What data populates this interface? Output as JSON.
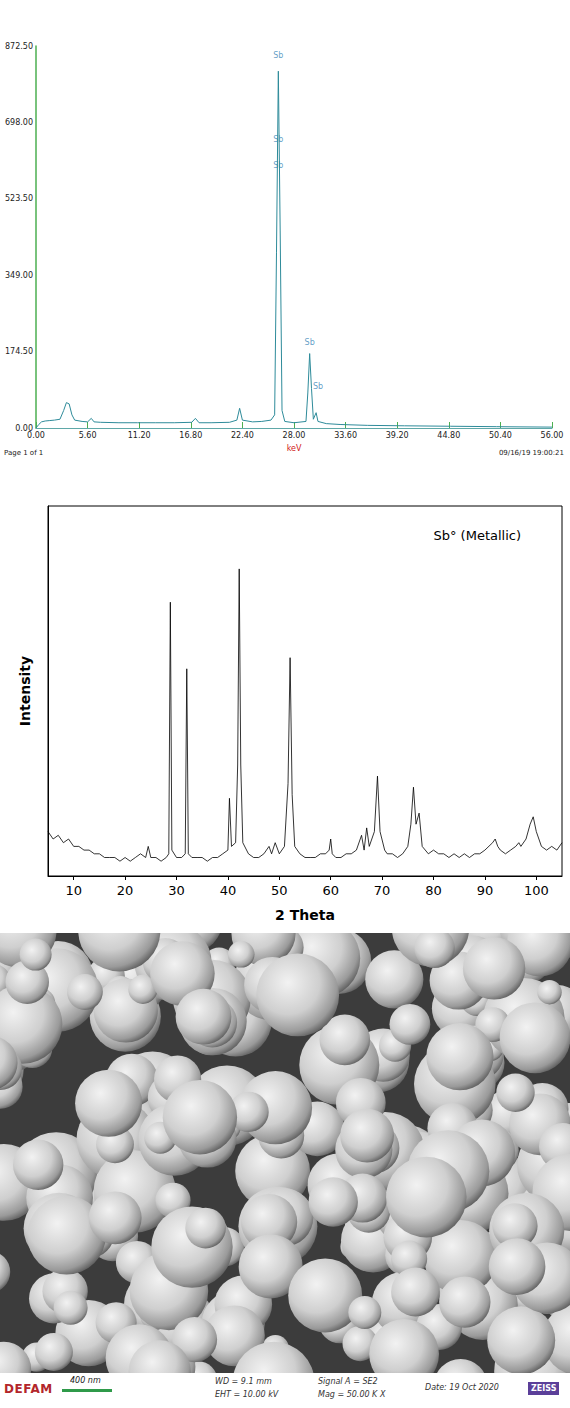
{
  "chart_data": [
    {
      "type": "line",
      "color": "#2e8b9a",
      "grid": false,
      "x_label": "keV",
      "x": [
        0,
        0.3,
        0.6,
        1,
        1.5,
        2,
        2.6,
        3,
        3.3,
        3.6,
        3.9,
        4.2,
        5,
        5.6,
        6,
        6.3,
        7,
        9,
        11,
        13,
        15,
        16.9,
        17.3,
        17.7,
        19,
        21,
        21.8,
        22.1,
        22.4,
        23.5,
        24.5,
        25.5,
        25.9,
        26.1,
        26.3,
        26.5,
        26.7,
        27,
        28,
        29.3,
        29.5,
        29.7,
        29.9,
        30.1,
        30.4,
        30.6,
        31.5,
        33,
        36,
        40,
        45,
        50,
        56
      ],
      "values": [
        0,
        8,
        14,
        16,
        17,
        18,
        20,
        40,
        58,
        55,
        30,
        18,
        15,
        14,
        22,
        14,
        13,
        12,
        12,
        12,
        12,
        13,
        22,
        12,
        12,
        13,
        18,
        45,
        18,
        14,
        15,
        18,
        30,
        400,
        815,
        450,
        40,
        15,
        12,
        15,
        80,
        170,
        90,
        20,
        35,
        15,
        10,
        8,
        6,
        5,
        4,
        3,
        2
      ],
      "xlim": [
        0,
        56
      ],
      "xticks": [
        {
          "value": 0,
          "label": "0.00"
        },
        {
          "value": 5.6,
          "label": "5.60"
        },
        {
          "value": 11.2,
          "label": "11.20"
        },
        {
          "value": 16.8,
          "label": "16.80"
        },
        {
          "value": 22.4,
          "label": "22.40"
        },
        {
          "value": 28,
          "label": "28.00"
        },
        {
          "value": 33.6,
          "label": "33.60"
        },
        {
          "value": 39.2,
          "label": "39.20"
        },
        {
          "value": 44.8,
          "label": "44.80"
        },
        {
          "value": 50.4,
          "label": "50.40"
        },
        {
          "value": 56,
          "label": "56.00"
        }
      ],
      "ylim": [
        0,
        872.5
      ],
      "yticks": [
        {
          "value": 0,
          "label": "0.00"
        },
        {
          "value": 174.5,
          "label": "174.50"
        },
        {
          "value": 349,
          "label": "349.00"
        },
        {
          "value": 523.5,
          "label": "523.50"
        },
        {
          "value": 698,
          "label": "698.00"
        },
        {
          "value": 872.5,
          "label": "872.50"
        }
      ],
      "annotations": [
        {
          "text": "Sb",
          "x": 26.3,
          "y": 850
        },
        {
          "text": "Sb",
          "x": 26.3,
          "y": 660
        },
        {
          "text": "Sb",
          "x": 26.3,
          "y": 600
        },
        {
          "text": "Sb",
          "x": 29.7,
          "y": 195
        },
        {
          "text": "Sb",
          "x": 30.6,
          "y": 95
        }
      ],
      "footer": [
        "Page 1 of 1",
        "09/16/19 19:00:21"
      ]
    },
    {
      "type": "line",
      "color": "#000000",
      "grid": false,
      "tick_labels": "x",
      "title": "Sb° (Metallic)",
      "x_label": "2 Theta",
      "y_label": "Intensity",
      "x": [
        5,
        6,
        7,
        8,
        9,
        10,
        11,
        12,
        13,
        14,
        15,
        16,
        17,
        18,
        19,
        20,
        21,
        22,
        23,
        24,
        24.5,
        25,
        26,
        27,
        28,
        28.5,
        28.8,
        29.1,
        30,
        31,
        31.7,
        32,
        32.3,
        33,
        34,
        35,
        36,
        37,
        38,
        39,
        40,
        40.3,
        40.7,
        41.5,
        41.9,
        42.2,
        42.5,
        42.9,
        44,
        45,
        46,
        47,
        48,
        48.5,
        49.2,
        50,
        51,
        51.7,
        52.1,
        52.5,
        53,
        54,
        55,
        56,
        57,
        58,
        59,
        59.7,
        60,
        60.3,
        61,
        62,
        63,
        64,
        65,
        66,
        66.5,
        67,
        67.5,
        68.5,
        69.1,
        69.6,
        70.5,
        71,
        72,
        73,
        74,
        75,
        75.6,
        76.1,
        76.6,
        77.2,
        77.8,
        79,
        80,
        81,
        82,
        83,
        84,
        85,
        86,
        87,
        88,
        89,
        90,
        91.5,
        92,
        92.5,
        93,
        94,
        95,
        96,
        96.6,
        97,
        98,
        98.8,
        99.4,
        100,
        101,
        102,
        103,
        104,
        105
      ],
      "values": [
        12,
        10,
        11,
        9,
        10,
        8,
        8,
        7,
        7,
        6,
        6,
        5,
        5,
        5,
        4,
        5,
        4,
        5,
        6,
        5,
        8,
        5,
        5,
        4,
        5,
        6,
        74,
        7,
        5,
        5,
        6,
        56,
        6,
        5,
        5,
        5,
        4,
        5,
        5,
        6,
        7,
        21,
        8,
        9,
        30,
        83,
        30,
        9,
        6,
        5,
        5,
        6,
        8,
        6,
        9,
        6,
        8,
        25,
        59,
        22,
        8,
        6,
        5,
        5,
        5,
        6,
        6,
        7,
        10,
        6,
        5,
        5,
        6,
        6,
        7,
        11,
        7,
        13,
        8,
        12,
        27,
        12,
        7,
        6,
        6,
        5,
        6,
        8,
        14,
        24,
        14,
        17,
        8,
        6,
        7,
        6,
        6,
        5,
        6,
        5,
        6,
        5,
        6,
        6,
        7,
        9,
        10,
        8,
        7,
        6,
        7,
        8,
        9,
        8,
        10,
        14,
        16,
        12,
        8,
        7,
        8,
        7,
        9
      ],
      "xlim": [
        5,
        105
      ],
      "xticks": [
        10,
        20,
        30,
        40,
        50,
        60,
        70,
        80,
        90,
        100
      ],
      "ylim": [
        0,
        100
      ]
    }
  ],
  "micrograph": {
    "footer": {
      "logo": "DEFAM",
      "scale_bar": "400 nm",
      "wd": "WD = 9.1 mm",
      "eht": "EHT = 10.00 kV",
      "signal": "Signal A = SE2",
      "mag": "Mag = 50.00 K X",
      "date": "Date: 19 Oct 2020",
      "brand": "ZEISS"
    }
  }
}
